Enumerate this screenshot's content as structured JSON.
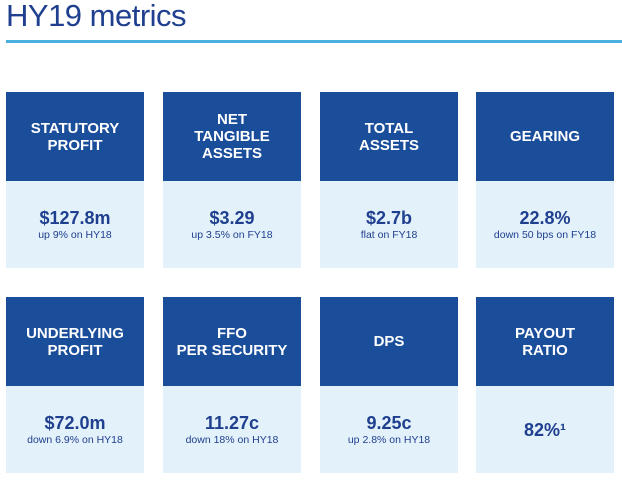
{
  "page": {
    "title": "HY19 metrics"
  },
  "metrics": [
    {
      "label": "STATUTORY\nPROFIT",
      "value": "$127.8m",
      "note": "up 9% on HY18"
    },
    {
      "label": "NET\nTANGIBLE\nASSETS",
      "value": "$3.29",
      "note": "up 3.5% on FY18"
    },
    {
      "label": "TOTAL\nASSETS",
      "value": "$2.7b",
      "note": "flat on FY18"
    },
    {
      "label": "GEARING",
      "value": "22.8%",
      "note": "down 50 bps on FY18"
    },
    {
      "label": "UNDERLYING\nPROFIT",
      "value": "$72.0m",
      "note": "down 6.9% on HY18"
    },
    {
      "label": "FFO\nPER SECURITY",
      "value": "11.27c",
      "note": "down 18% on HY18"
    },
    {
      "label": "DPS",
      "value": "9.25c",
      "note": "up 2.8% on HY18"
    },
    {
      "label": "PAYOUT\nRATIO",
      "value": "82%¹",
      "note": ""
    }
  ],
  "colors": {
    "header_bg": "#1a4e9b",
    "body_bg": "#e3f1fa",
    "title": "#1f3f8f",
    "rule": "#4ab0e0"
  }
}
